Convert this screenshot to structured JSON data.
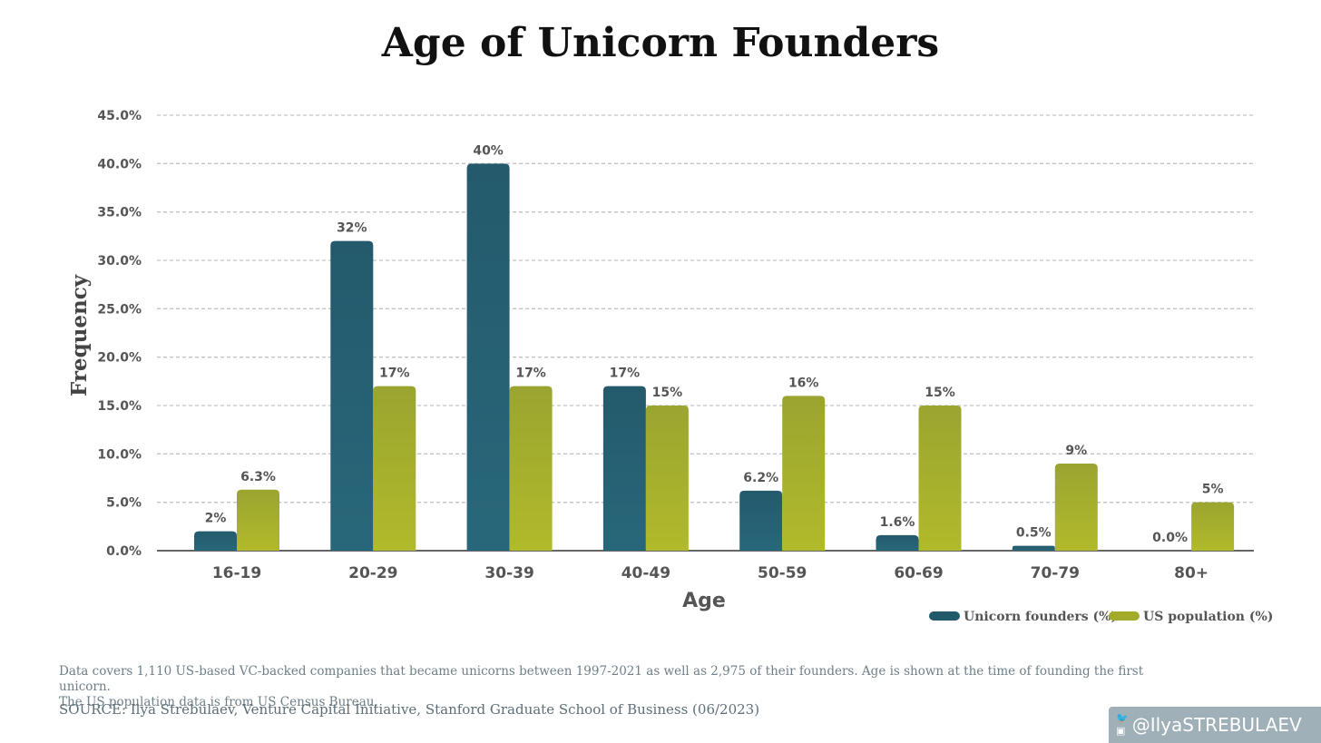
{
  "title": "Age of Unicorn Founders",
  "chart_data": {
    "type": "bar",
    "title": "Age of Unicorn Founders",
    "xlabel": "Age",
    "ylabel": "Frequency",
    "ylim": [
      0,
      45
    ],
    "yticks": [
      "0.0%",
      "5.0%",
      "10.0%",
      "15.0%",
      "20.0%",
      "25.0%",
      "30.0%",
      "35.0%",
      "40.0%",
      "45.0%"
    ],
    "grid": true,
    "legend_position": "bottom-right",
    "categories": [
      "16-19",
      "20-29",
      "30-39",
      "40-49",
      "50-59",
      "60-69",
      "70-79",
      "80+"
    ],
    "series": [
      {
        "name": "Unicorn founders (%)",
        "color": "#22596b",
        "values": [
          2,
          32,
          40,
          17,
          6.2,
          1.6,
          0.5,
          0.0
        ],
        "labels": [
          "2%",
          "32%",
          "40%",
          "17%",
          "6.2%",
          "1.6%",
          "0.5%",
          "0.0%"
        ]
      },
      {
        "name": "US population (%)",
        "color": "#a2ac2a",
        "values": [
          6.3,
          17,
          17,
          15,
          16,
          15,
          9,
          5
        ],
        "labels": [
          "6.3%",
          "17%",
          "17%",
          "15%",
          "16%",
          "15%",
          "9%",
          "5%"
        ]
      }
    ]
  },
  "footnote": {
    "line1": "Data covers 1,110 US-based VC-backed companies that became unicorns between 1997-2021 as well as 2,975 of their founders. Age is shown at the time of founding the first unicorn.",
    "line2": "The US population data is from US Census Bureau.",
    "source": "SOURCE: Ilya Strebulaev, Venture Capital Initiative, Stanford Graduate School of Business (06/2023)"
  },
  "badge": {
    "handle": "@IlyaSTREBULAEV",
    "icon_top": "twitter-icon",
    "icon_bottom": "instagram-icon"
  }
}
